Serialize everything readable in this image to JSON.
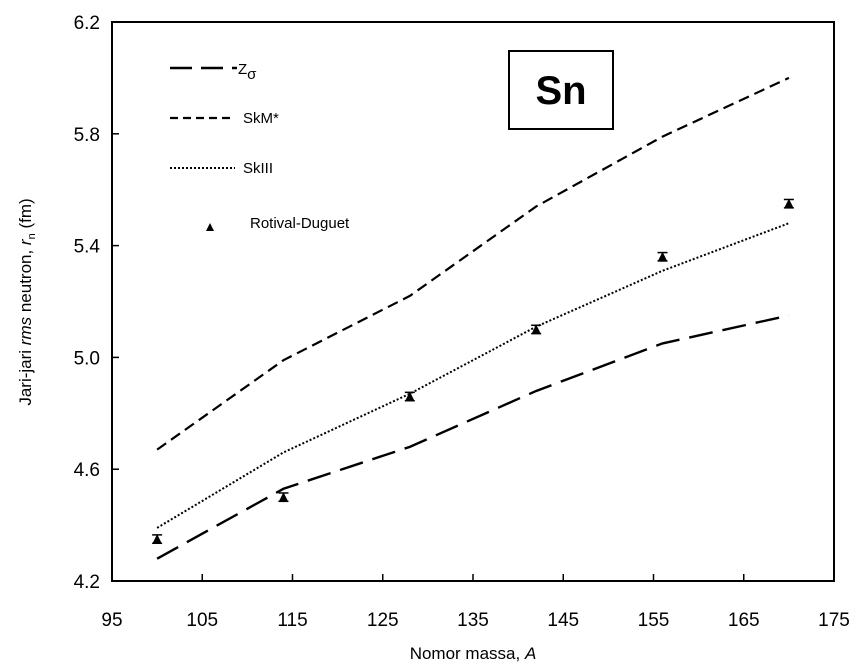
{
  "chart_data": {
    "type": "line",
    "xlabel": "Nomor massa, A",
    "xlabel_parts": {
      "text": "Nomor massa, ",
      "italic": "A"
    },
    "ylabel": "Jari-jari rms neutron, rn (fm)",
    "ylabel_parts": {
      "pre": "Jari-jari ",
      "italic1": "rms",
      "mid": " neutron, ",
      "italic2": "r",
      "sub": "n",
      "post": " (fm)"
    },
    "xlim": [
      95,
      175
    ],
    "ylim": [
      4.2,
      6.2
    ],
    "xticks": [
      "95",
      "105",
      "115",
      "125",
      "135",
      "145",
      "155",
      "165",
      "175"
    ],
    "yticks": [
      "4.2",
      "4.6",
      "5.0",
      "5.4",
      "5.8",
      "6.2"
    ],
    "grid": false,
    "legend_position": "top-left",
    "annotation": "Sn",
    "series": [
      {
        "name": "Zσ",
        "label_main": "Z",
        "label_sub": "σ",
        "style": "long-dash",
        "x": [
          100,
          114,
          128,
          142,
          156,
          170
        ],
        "y": [
          4.28,
          4.53,
          4.68,
          4.88,
          5.05,
          5.15
        ]
      },
      {
        "name": "SkM*",
        "style": "short-dash",
        "x": [
          100,
          114,
          128,
          142,
          156,
          170
        ],
        "y": [
          4.67,
          4.99,
          5.22,
          5.54,
          5.79,
          6.0
        ]
      },
      {
        "name": "SkIII",
        "style": "dotted",
        "x": [
          100,
          114,
          128,
          142,
          156,
          170
        ],
        "y": [
          4.39,
          4.66,
          4.87,
          5.11,
          5.31,
          5.48
        ]
      },
      {
        "name": "Rotival-Duguet",
        "style": "triangle-markers",
        "x": [
          100,
          114,
          128,
          142,
          156,
          170
        ],
        "y": [
          4.35,
          4.5,
          4.86,
          5.1,
          5.36,
          5.55
        ],
        "err": [
          0.015,
          0.015,
          0.015,
          0.015,
          0.015,
          0.015
        ]
      }
    ]
  }
}
